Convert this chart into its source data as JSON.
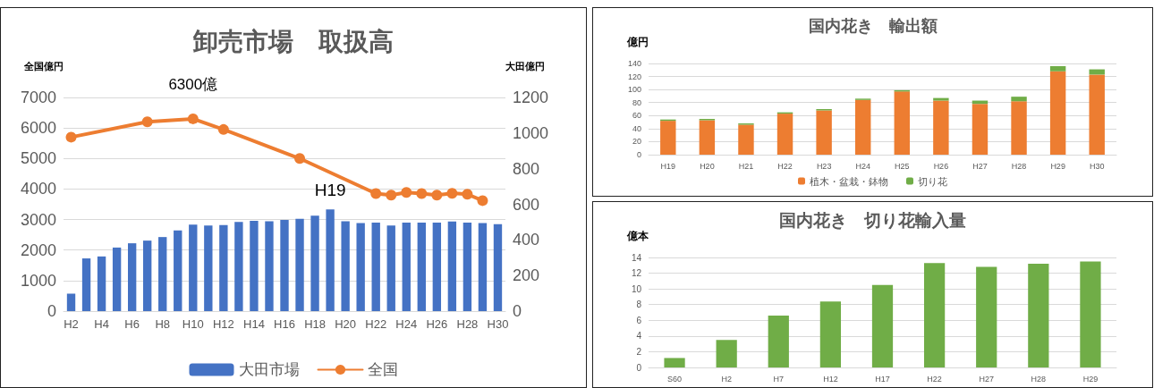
{
  "chart_data": [
    {
      "type": "bar",
      "title": "卸売市場　取扱高",
      "ylabel": "全国億円",
      "y2label": "大田億円",
      "categories": [
        "H2",
        null,
        "H4",
        null,
        "H6",
        null,
        "H8",
        null,
        "H10",
        null,
        "H12",
        null,
        "H14",
        null,
        "H16",
        null,
        "H18",
        null,
        "H20",
        null,
        "H22",
        null,
        "H24",
        null,
        "H26",
        null,
        "H28",
        null,
        "H30"
      ],
      "series": [
        {
          "name": "大田市場",
          "axis": "y2",
          "color": "#4472c4",
          "values": [
            98,
            296,
            307,
            357,
            381,
            396,
            416,
            453,
            486,
            481,
            483,
            501,
            507,
            505,
            512,
            518,
            536,
            571,
            505,
            494,
            497,
            481,
            497,
            497,
            497,
            503,
            497,
            494,
            488
          ]
        },
        {
          "name": "全国",
          "type": "line",
          "color": "#ed7d31",
          "values": [
            5700,
            null,
            null,
            null,
            null,
            6200,
            null,
            null,
            6300,
            null,
            5950,
            null,
            null,
            null,
            null,
            5000,
            null,
            null,
            null,
            null,
            3850,
            3800,
            3890,
            3850,
            3800,
            3860,
            3830,
            3620,
            null
          ]
        }
      ],
      "ylim": [
        0,
        7000
      ],
      "yticks": [
        0,
        1000,
        2000,
        3000,
        4000,
        5000,
        6000,
        7000
      ],
      "y2lim": [
        0,
        1200
      ],
      "y2ticks": [
        0,
        200,
        400,
        600,
        800,
        1000,
        1200
      ],
      "annotations": [
        {
          "text": "6300億",
          "x": "H10",
          "y": 6300
        },
        "H19"
      ],
      "grid": "y",
      "legend": "bottom",
      "marker": "circle"
    },
    {
      "type": "bar",
      "title": "国内花き　輸出額",
      "ylabel": "億円",
      "stacked": true,
      "categories": [
        "H19",
        "H20",
        "H21",
        "H22",
        "H23",
        "H24",
        "H25",
        "H26",
        "H27",
        "H28",
        "H29",
        "H30"
      ],
      "series": [
        {
          "name": "植木・盆栽・鉢物",
          "color": "#ed7d31",
          "values": [
            52,
            53,
            46,
            63,
            68,
            84,
            97,
            83,
            78,
            82,
            128,
            123
          ]
        },
        {
          "name": "切り花",
          "color": "#70ad47",
          "values": [
            2,
            2,
            2,
            2,
            2,
            2,
            2,
            4,
            5,
            7,
            8,
            8
          ]
        }
      ],
      "ylim": [
        0,
        140
      ],
      "yticks": [
        0,
        20,
        40,
        60,
        80,
        100,
        120,
        140
      ],
      "grid": "y",
      "legend": "bottom"
    },
    {
      "type": "bar",
      "title": "国内花き　切り花輸入量",
      "ylabel": "億本",
      "categories": [
        "S60",
        "H2",
        "H7",
        "H12",
        "H17",
        "H22",
        "H27",
        "H28",
        "H29"
      ],
      "values": [
        1.2,
        3.5,
        6.6,
        8.4,
        10.5,
        13.3,
        12.8,
        13.2,
        13.5
      ],
      "color": "#70ad47",
      "ylim": [
        0,
        14
      ],
      "yticks": [
        0,
        2,
        4,
        6,
        8,
        10,
        12,
        14
      ],
      "grid": "y"
    }
  ]
}
